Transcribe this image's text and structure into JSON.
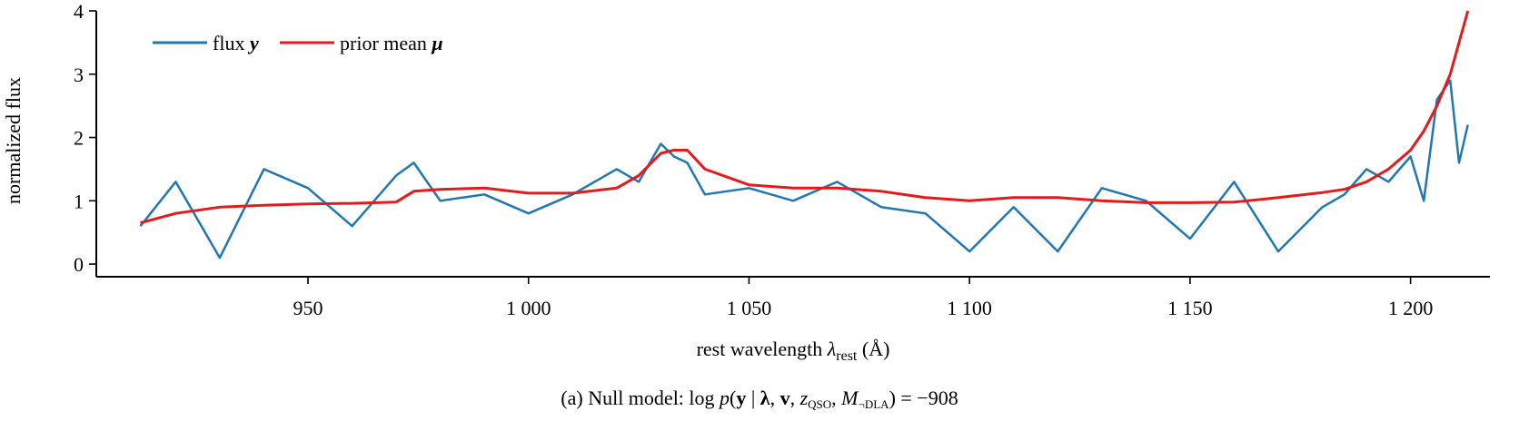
{
  "chart_data": {
    "type": "line",
    "x": [
      912,
      920,
      930,
      940,
      950,
      960,
      970,
      974,
      980,
      990,
      1000,
      1010,
      1020,
      1025,
      1030,
      1033,
      1036,
      1040,
      1050,
      1060,
      1070,
      1080,
      1090,
      1100,
      1110,
      1120,
      1130,
      1140,
      1150,
      1160,
      1170,
      1180,
      1185,
      1190,
      1195,
      1200,
      1203,
      1206,
      1209,
      1211,
      1213
    ],
    "series": [
      {
        "name": "prior mean μ",
        "color": "#e41a1c",
        "values": [
          0.65,
          0.8,
          0.9,
          0.93,
          0.95,
          0.96,
          0.98,
          1.15,
          1.18,
          1.2,
          1.12,
          1.12,
          1.2,
          1.4,
          1.75,
          1.8,
          1.8,
          1.5,
          1.25,
          1.2,
          1.2,
          1.15,
          1.05,
          1.0,
          1.05,
          1.05,
          1.0,
          0.97,
          0.97,
          0.98,
          1.05,
          1.13,
          1.18,
          1.3,
          1.5,
          1.8,
          2.1,
          2.5,
          3.0,
          3.5,
          4.0
        ]
      },
      {
        "name": "flux y",
        "color": "#1f77b4",
        "values": [
          0.6,
          1.3,
          0.1,
          1.5,
          1.2,
          0.6,
          1.4,
          1.6,
          1.0,
          1.1,
          0.8,
          1.1,
          1.5,
          1.3,
          1.9,
          1.7,
          1.6,
          1.1,
          1.2,
          1.0,
          1.3,
          0.9,
          0.8,
          0.2,
          0.9,
          0.2,
          1.2,
          1.0,
          0.4,
          1.3,
          0.2,
          0.9,
          1.1,
          1.5,
          1.3,
          1.7,
          1.0,
          2.6,
          2.9,
          1.6,
          2.2
        ]
      }
    ],
    "xlabel": "rest wavelength λrest (Å)",
    "ylabel": "normalized flux",
    "xlim": [
      902,
      1218
    ],
    "ylim": [
      -0.2,
      4
    ],
    "xticks": [
      950,
      1000,
      1050,
      1100,
      1150,
      1200
    ],
    "xtick_labels": [
      "950",
      "1 000",
      "1 050",
      "1 100",
      "1 150",
      "1 200"
    ],
    "yticks": [
      0,
      1,
      2,
      3,
      4
    ],
    "ytick_labels": [
      "0",
      "1",
      "2",
      "3",
      "4"
    ],
    "grid": false,
    "legend_position": "top-left"
  },
  "legend": {
    "flux_label": "flux",
    "flux_symbol": "y",
    "mean_label": "prior mean",
    "mean_symbol": "μ"
  },
  "axes": {
    "xlabel_main": "rest wavelength ",
    "xlabel_symbol": "λ",
    "xlabel_sub": "rest",
    "xlabel_unit": " (Å)",
    "ylabel": "normalized flux"
  },
  "caption": {
    "prefix": "(a) Null model: ",
    "log": "log ",
    "p": "p",
    "open": "(",
    "y": "y",
    "given": " | ",
    "lambda": "λ",
    "comma1": ", ",
    "v": "v",
    "comma2": ", ",
    "z": "z",
    "z_sub": "QSO",
    "comma3": ", ",
    "model": "M",
    "model_sub": "¬DLA",
    "close": ") = ",
    "value": "−908"
  }
}
